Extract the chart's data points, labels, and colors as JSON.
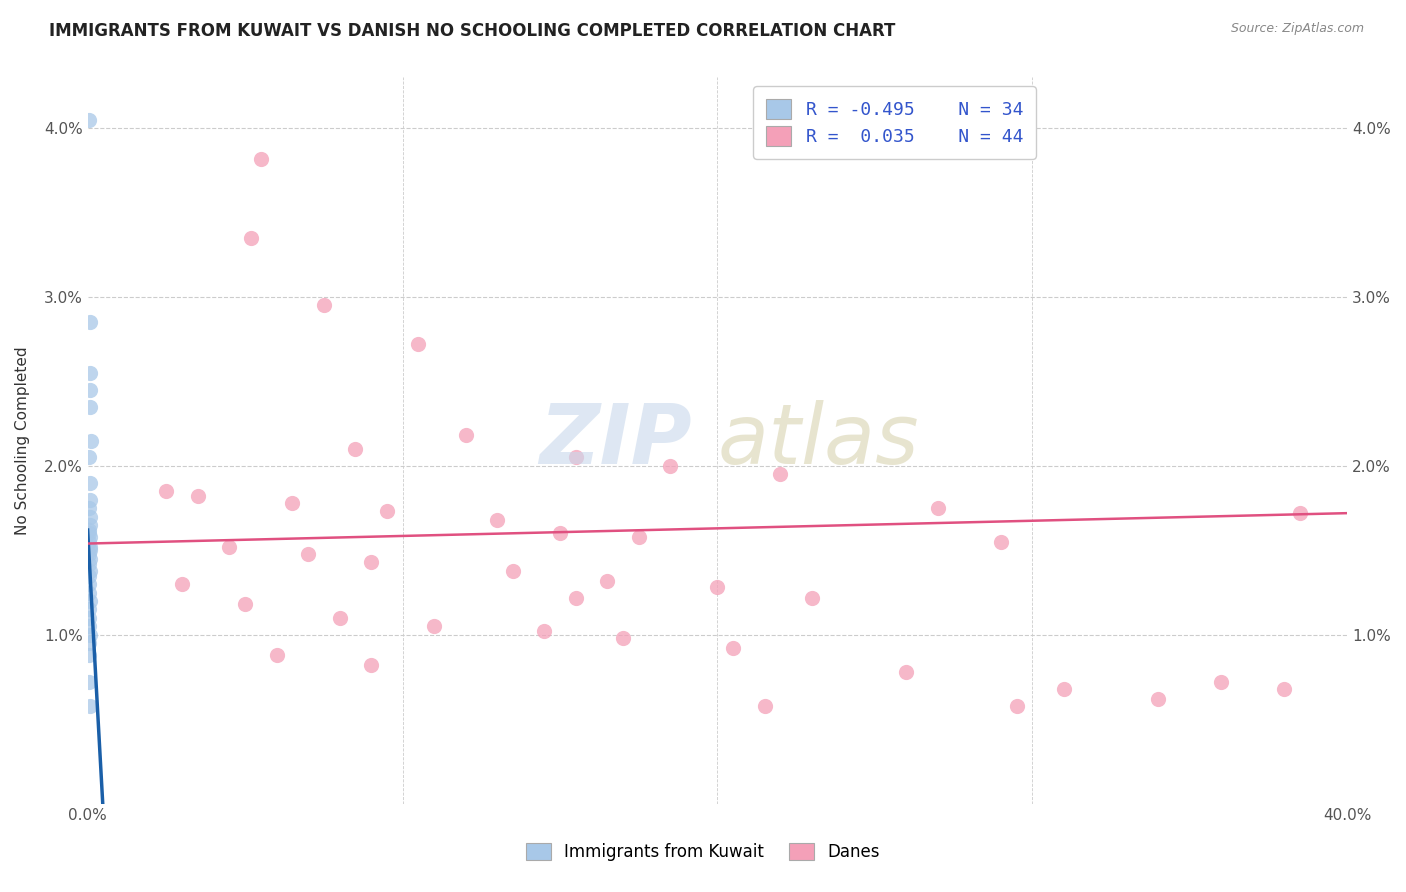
{
  "title": "IMMIGRANTS FROM KUWAIT VS DANISH NO SCHOOLING COMPLETED CORRELATION CHART",
  "source": "Source: ZipAtlas.com",
  "ylabel": "No Schooling Completed",
  "y_ticks": [
    0.0,
    1.0,
    2.0,
    3.0,
    4.0
  ],
  "y_tick_labels": [
    "",
    "1.0%",
    "2.0%",
    "3.0%",
    "4.0%"
  ],
  "x_lim": [
    0.0,
    40.0
  ],
  "y_lim": [
    0.0,
    4.3
  ],
  "blue_color": "#a8c8e8",
  "pink_color": "#f4a0b8",
  "blue_line_color": "#1a5fa8",
  "pink_line_color": "#e05080",
  "blue_scatter": [
    [
      0.05,
      4.05
    ],
    [
      0.08,
      2.85
    ],
    [
      0.06,
      2.55
    ],
    [
      0.09,
      2.45
    ],
    [
      0.07,
      2.35
    ],
    [
      0.1,
      2.15
    ],
    [
      0.05,
      2.05
    ],
    [
      0.06,
      1.9
    ],
    [
      0.08,
      1.8
    ],
    [
      0.04,
      1.75
    ],
    [
      0.07,
      1.7
    ],
    [
      0.09,
      1.65
    ],
    [
      0.03,
      1.62
    ],
    [
      0.05,
      1.6
    ],
    [
      0.07,
      1.58
    ],
    [
      0.04,
      1.55
    ],
    [
      0.06,
      1.52
    ],
    [
      0.08,
      1.5
    ],
    [
      0.05,
      1.48
    ],
    [
      0.07,
      1.45
    ],
    [
      0.04,
      1.42
    ],
    [
      0.06,
      1.38
    ],
    [
      0.03,
      1.35
    ],
    [
      0.05,
      1.3
    ],
    [
      0.04,
      1.25
    ],
    [
      0.06,
      1.2
    ],
    [
      0.03,
      1.15
    ],
    [
      0.05,
      1.1
    ],
    [
      0.04,
      1.05
    ],
    [
      0.06,
      1.0
    ],
    [
      0.03,
      0.95
    ],
    [
      0.05,
      0.88
    ],
    [
      0.04,
      0.72
    ],
    [
      0.06,
      0.58
    ]
  ],
  "pink_scatter": [
    [
      5.5,
      3.82
    ],
    [
      5.2,
      3.35
    ],
    [
      7.5,
      2.95
    ],
    [
      10.5,
      2.72
    ],
    [
      12.0,
      2.18
    ],
    [
      8.5,
      2.1
    ],
    [
      15.5,
      2.05
    ],
    [
      18.5,
      2.0
    ],
    [
      22.0,
      1.95
    ],
    [
      3.5,
      1.82
    ],
    [
      6.5,
      1.78
    ],
    [
      9.5,
      1.73
    ],
    [
      13.0,
      1.68
    ],
    [
      15.0,
      1.6
    ],
    [
      17.5,
      1.58
    ],
    [
      4.5,
      1.52
    ],
    [
      7.0,
      1.48
    ],
    [
      9.0,
      1.43
    ],
    [
      13.5,
      1.38
    ],
    [
      16.5,
      1.32
    ],
    [
      20.0,
      1.28
    ],
    [
      23.0,
      1.22
    ],
    [
      5.0,
      1.18
    ],
    [
      8.0,
      1.1
    ],
    [
      11.0,
      1.05
    ],
    [
      14.5,
      1.02
    ],
    [
      17.0,
      0.98
    ],
    [
      20.5,
      0.92
    ],
    [
      6.0,
      0.88
    ],
    [
      9.0,
      0.82
    ],
    [
      26.0,
      0.78
    ],
    [
      31.0,
      0.68
    ],
    [
      34.0,
      0.62
    ],
    [
      2.5,
      1.85
    ],
    [
      27.0,
      1.75
    ],
    [
      3.0,
      1.3
    ],
    [
      15.5,
      1.22
    ],
    [
      29.0,
      1.55
    ],
    [
      36.0,
      0.72
    ],
    [
      38.0,
      0.68
    ],
    [
      21.5,
      0.58
    ],
    [
      29.5,
      0.58
    ],
    [
      38.5,
      1.72
    ]
  ],
  "blue_line_x": [
    0.0,
    0.48
  ],
  "blue_line_y": [
    1.62,
    0.0
  ],
  "pink_line_x": [
    0.0,
    40.0
  ],
  "pink_line_y": [
    1.54,
    1.72
  ]
}
